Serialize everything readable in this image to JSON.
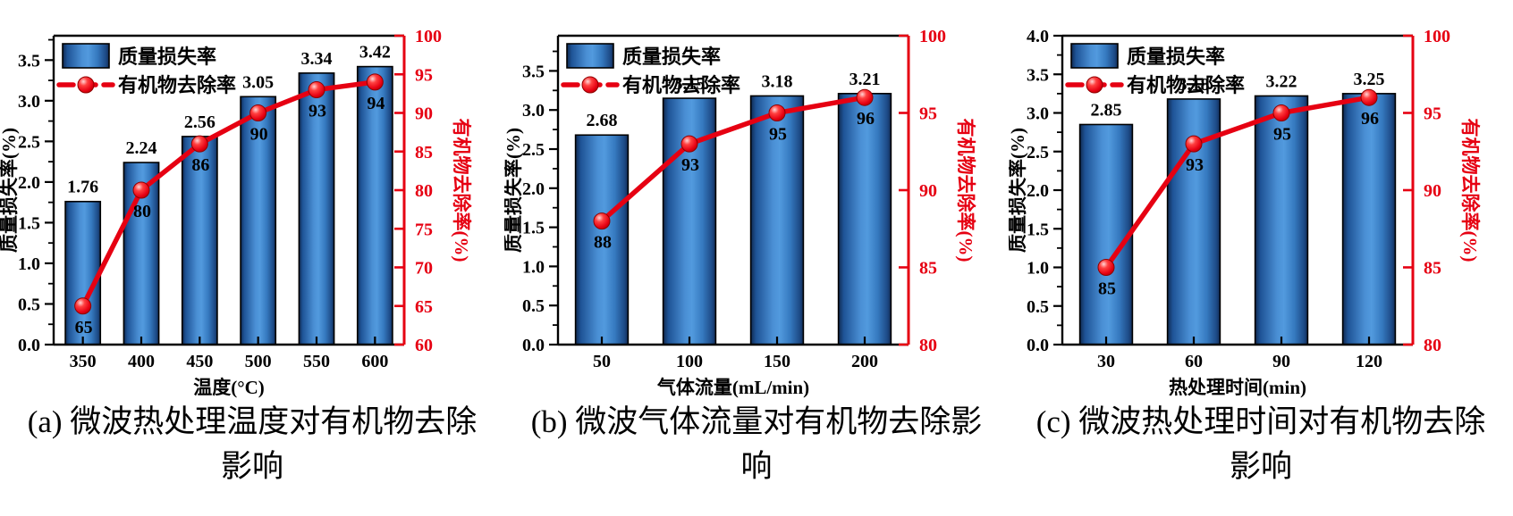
{
  "colors": {
    "bar_fill_mid": "#4a8fd4",
    "bar_fill_edge": "#10294f",
    "bar_stroke": "#000000",
    "line_color": "#e60012",
    "right_axis_color": "#e60012",
    "axis_color": "#000000",
    "text_color": "#000000"
  },
  "legend": {
    "bar_label": "质量损失率",
    "line_label": "有机物去除率"
  },
  "chart_data": [
    {
      "id": "a",
      "type": "bar+line",
      "categories": [
        "350",
        "400",
        "450",
        "500",
        "550",
        "600"
      ],
      "series": [
        {
          "name": "质量损失率",
          "type": "bar",
          "axis": "left",
          "values": [
            1.76,
            2.24,
            2.56,
            3.05,
            3.34,
            3.42
          ]
        },
        {
          "name": "有机物去除率",
          "type": "line",
          "axis": "right",
          "values": [
            65,
            80,
            86,
            90,
            93,
            94
          ]
        }
      ],
      "xlabel": "温度(°C)",
      "ylabel_left": "质量损失率(%)",
      "ylabel_right": "有机物去除率(%)",
      "ylim_left": [
        0,
        3.8
      ],
      "yticks_left": [
        "0.0",
        "0.5",
        "1.0",
        "1.5",
        "2.0",
        "2.5",
        "3.0",
        "3.5"
      ],
      "ylim_right": [
        60,
        100
      ],
      "yticks_right": [
        60,
        65,
        70,
        75,
        80,
        85,
        90,
        95,
        100
      ],
      "grid": false,
      "legend_position": "top-left",
      "caption_line1": "(a) 微波热处理温度对有机物去除",
      "caption_line2": "影响"
    },
    {
      "id": "b",
      "type": "bar+line",
      "categories": [
        "50",
        "100",
        "150",
        "200"
      ],
      "series": [
        {
          "name": "质量损失率",
          "type": "bar",
          "axis": "left",
          "values": [
            2.68,
            3.15,
            3.18,
            3.21
          ]
        },
        {
          "name": "有机物去除率",
          "type": "line",
          "axis": "right",
          "values": [
            88,
            93,
            95,
            96
          ]
        }
      ],
      "xlabel": "气体流量(mL/min)",
      "ylabel_left": "质量损失率(%)",
      "ylabel_right": "有机物去除率(%)",
      "ylim_left": [
        0,
        3.95
      ],
      "yticks_left": [
        "0.0",
        "0.5",
        "1.0",
        "1.5",
        "2.0",
        "2.5",
        "3.0",
        "3.5"
      ],
      "ylim_right": [
        80,
        100
      ],
      "yticks_right": [
        80,
        85,
        90,
        95,
        100
      ],
      "grid": false,
      "legend_position": "top-left",
      "caption_line1": "(b) 微波气体流量对有机物去除影",
      "caption_line2": "响"
    },
    {
      "id": "c",
      "type": "bar+line",
      "categories": [
        "30",
        "60",
        "90",
        "120"
      ],
      "series": [
        {
          "name": "质量损失率",
          "type": "bar",
          "axis": "left",
          "values": [
            2.85,
            3.18,
            3.22,
            3.25
          ]
        },
        {
          "name": "有机物去除率",
          "type": "line",
          "axis": "right",
          "values": [
            85,
            93,
            95,
            96
          ]
        }
      ],
      "xlabel": "热处理时间(min)",
      "ylabel_left": "质量损失率(%)",
      "ylabel_right": "有机物去除率(%)",
      "ylim_left": [
        0,
        4.0
      ],
      "yticks_left": [
        "0.0",
        "0.5",
        "1.0",
        "1.5",
        "2.0",
        "2.5",
        "3.0",
        "3.5",
        "4.0"
      ],
      "ylim_right": [
        80,
        100
      ],
      "yticks_right": [
        80,
        85,
        90,
        95,
        100
      ],
      "grid": false,
      "legend_position": "top-left",
      "caption_line1": "(c) 微波热处理时间对有机物去除",
      "caption_line2": "影响"
    }
  ]
}
